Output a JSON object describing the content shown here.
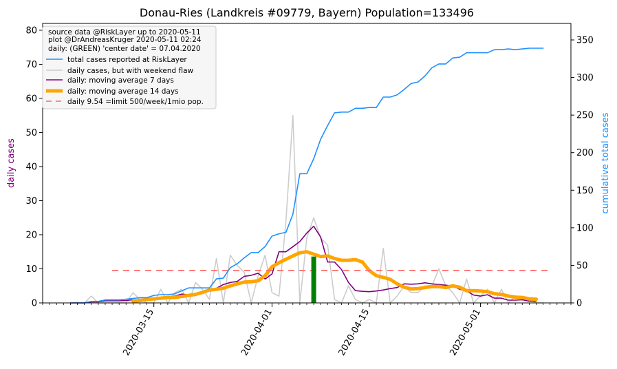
{
  "chart_data": {
    "type": "line",
    "title": "Donau-Ries (Landkreis #09779, Bayern) Population=133496",
    "ylabel_left": "daily cases",
    "ylabel_right": "cumulative total cases",
    "ylim_left": [
      0,
      82
    ],
    "ylim_right": [
      0,
      372
    ],
    "yticks_left": [
      0,
      10,
      20,
      30,
      40,
      50,
      60,
      70,
      80
    ],
    "yticks_right": [
      0,
      50,
      100,
      150,
      200,
      250,
      300,
      350
    ],
    "x_start_date": "2020-03-03",
    "xlim_day": [
      -4,
      72
    ],
    "xticks": [
      {
        "day": 12,
        "label": "2020-03-15"
      },
      {
        "day": 29,
        "label": "2020-04-01"
      },
      {
        "day": 43,
        "label": "2020-04-15"
      },
      {
        "day": 59,
        "label": "2020-05-01"
      }
    ],
    "legend_notes": [
      "source data @RiskLayer up to 2020-05-11",
      "plot @DrAndreasKruger 2020-05-11 02:24",
      "daily: (GREEN) 'center date' = 07.04.2020"
    ],
    "series": [
      {
        "name": "total cases reported at RiskLayer",
        "axis": "right",
        "color": "#1e90ff",
        "x_start": 0,
        "values": [
          0,
          0,
          0,
          2,
          2,
          4,
          4,
          4,
          5,
          6,
          7,
          7,
          10,
          11,
          11,
          12,
          16,
          20,
          20,
          20,
          20,
          32,
          33,
          47,
          52,
          60,
          67,
          67,
          75,
          89,
          92,
          94,
          118,
          172,
          172,
          192,
          218,
          236,
          253,
          254,
          254,
          259,
          259,
          260,
          260,
          274,
          274,
          277,
          284,
          292,
          294,
          302,
          313,
          318,
          318,
          326,
          327,
          333,
          333,
          333,
          333,
          337,
          337,
          338,
          337,
          338,
          339,
          339,
          339
        ]
      },
      {
        "name": "daily cases, but with weekend flaw",
        "axis": "left",
        "color": "#cccccc",
        "x_start": 0,
        "values": [
          0,
          0,
          0,
          2,
          0,
          0,
          0,
          0,
          0,
          3,
          1,
          0,
          0,
          4,
          0,
          3,
          4,
          0,
          6,
          4,
          1,
          13,
          0,
          14,
          11,
          9,
          0,
          8,
          14,
          3,
          2,
          24,
          55,
          0,
          19,
          25,
          19,
          17,
          1,
          0,
          5,
          1,
          0,
          1,
          0,
          16,
          0,
          2,
          5,
          3,
          3,
          5,
          5,
          10,
          5,
          3,
          0,
          7,
          0,
          2,
          4,
          0,
          4,
          0,
          2,
          1,
          1,
          0,
          0
        ]
      },
      {
        "name": "daily: moving average 7 days",
        "axis": "left",
        "color": "#800080",
        "x_start": 0,
        "values": [
          0,
          0,
          0,
          0.3,
          0.3,
          0.6,
          0.6,
          0.6,
          0.7,
          0.9,
          1.0,
          1.2,
          1.3,
          1.5,
          1.8,
          2.0,
          2.6,
          2.3,
          2.5,
          3.2,
          3.5,
          4.3,
          5.4,
          6.0,
          6.3,
          7.8,
          8.1,
          8.7,
          7.0,
          8.5,
          15.0,
          15.0,
          16.5,
          18.0,
          20.5,
          22.5,
          19.3,
          12.0,
          12.0,
          9.8,
          6.0,
          3.6,
          3.4,
          3.3,
          3.5,
          3.8,
          4.2,
          4.5,
          5.6,
          5.5,
          5.6,
          5.9,
          5.6,
          5.4,
          5.2,
          5.0,
          4.0,
          3.5,
          2.3,
          2.0,
          2.4,
          1.4,
          1.4,
          0.8,
          0.8,
          0.9,
          0.5,
          0.5
        ]
      },
      {
        "name": "daily: moving average 14 days",
        "axis": "left",
        "color": "#ffa500",
        "x_start": 9,
        "values": [
          0.5,
          0.7,
          1.0,
          1.2,
          1.4,
          1.6,
          1.6,
          1.9,
          2.2,
          2.5,
          3.1,
          3.8,
          4.0,
          4.3,
          5.0,
          5.6,
          6.1,
          6.2,
          6.5,
          8.0,
          10.6,
          11.8,
          12.8,
          13.8,
          14.7,
          15.0,
          14.3,
          13.6,
          13.8,
          13.0,
          12.5,
          12.5,
          12.7,
          12.0,
          9.5,
          8.0,
          7.5,
          6.9,
          5.6,
          4.6,
          4.1,
          4.2,
          4.5,
          4.8,
          4.8,
          4.5,
          5.0,
          4.6,
          3.6,
          3.6,
          3.5,
          3.3,
          2.7,
          2.5,
          2.0,
          1.7,
          1.6,
          1.2,
          1.1
        ]
      },
      {
        "name": "daily 9.54 =limit 500/week/1mio pop.",
        "axis": "left",
        "color": "#ff6666",
        "type": "hline",
        "y": 9.54,
        "x_range": [
          6,
          69
        ]
      }
    ],
    "marker": {
      "name": "center date",
      "day": 35,
      "value": 13.6,
      "color": "#008000"
    }
  }
}
